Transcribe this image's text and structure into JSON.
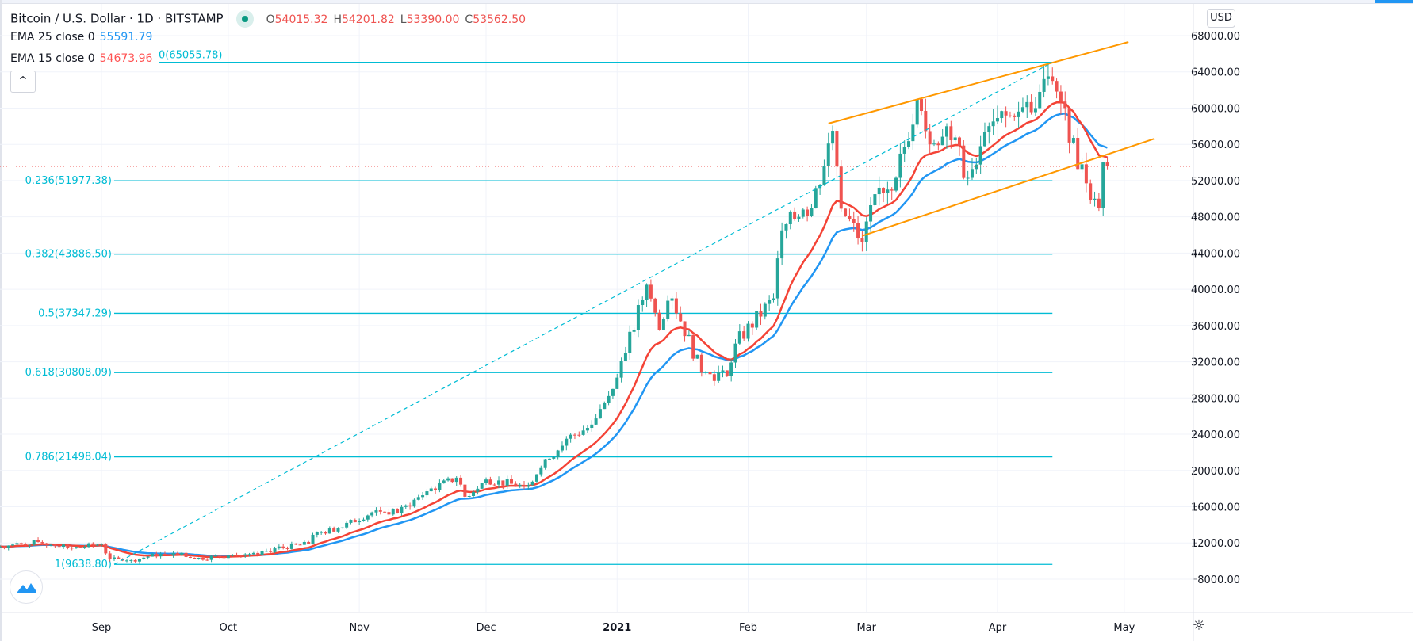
{
  "header": {
    "symbol": "Bitcoin / U.S. Dollar · 1D · BITSTAMP",
    "ohlc": {
      "o_label": "O",
      "o": "54015.32",
      "h_label": "H",
      "h": "54201.82",
      "l_label": "L",
      "l": "53390.00",
      "c_label": "C",
      "c": "53562.50"
    }
  },
  "indicators": [
    {
      "label": "EMA 25 close 0",
      "value": "55591.79",
      "color": "#2196f3",
      "length": 25
    },
    {
      "label": "EMA 15 close 0",
      "value": "54673.96",
      "color": "#f44336",
      "length": 15
    }
  ],
  "collapse_button": "^",
  "currency_button": "USD",
  "colors": {
    "up": "#26a69a",
    "down": "#ef5350",
    "fib": "#00bcd4",
    "channel": "#ff9800",
    "last_price": "#ef5350"
  },
  "chart_data": {
    "type": "candlestick",
    "price_axis": {
      "ticks": [
        "68000.00",
        "64000.00",
        "60000.00",
        "56000.00",
        "52000.00",
        "48000.00",
        "44000.00",
        "40000.00",
        "36000.00",
        "32000.00",
        "28000.00",
        "24000.00",
        "20000.00",
        "16000.00",
        "12000.00",
        "8000.00"
      ],
      "range": [
        4000,
        70000
      ]
    },
    "time_axis": {
      "ticks": [
        "Sep",
        "Oct",
        "Nov",
        "Dec",
        "2021",
        "Feb",
        "Mar",
        "Apr",
        "May"
      ]
    },
    "last_price": 53562.5,
    "approx_close_keyframes": [
      [
        "2020-08-08",
        11600
      ],
      [
        "2020-08-17",
        12100
      ],
      [
        "2020-08-25",
        11400
      ],
      [
        "2020-09-01",
        11900
      ],
      [
        "2020-09-03",
        10200
      ],
      [
        "2020-09-08",
        10100
      ],
      [
        "2020-09-15",
        10800
      ],
      [
        "2020-09-20",
        10900
      ],
      [
        "2020-09-23",
        10250
      ],
      [
        "2020-10-01",
        10600
      ],
      [
        "2020-10-08",
        10700
      ],
      [
        "2020-10-12",
        11400
      ],
      [
        "2020-10-20",
        11900
      ],
      [
        "2020-10-21",
        12900
      ],
      [
        "2020-10-27",
        13600
      ],
      [
        "2020-11-05",
        15600
      ],
      [
        "2020-11-10",
        15300
      ],
      [
        "2020-11-17",
        17700
      ],
      [
        "2020-11-24",
        19200
      ],
      [
        "2020-11-26",
        17100
      ],
      [
        "2020-12-01",
        19000
      ],
      [
        "2020-12-10",
        18200
      ],
      [
        "2020-12-16",
        21300
      ],
      [
        "2020-12-20",
        23500
      ],
      [
        "2020-12-25",
        24700
      ],
      [
        "2020-12-31",
        29000
      ],
      [
        "2021-01-03",
        33000
      ],
      [
        "2021-01-08",
        40500
      ],
      [
        "2021-01-11",
        35500
      ],
      [
        "2021-01-14",
        39000
      ],
      [
        "2021-01-21",
        30800
      ],
      [
        "2021-01-27",
        30400
      ],
      [
        "2021-01-29",
        34000
      ],
      [
        "2021-02-07",
        39000
      ],
      [
        "2021-02-09",
        46500
      ],
      [
        "2021-02-14",
        48800
      ],
      [
        "2021-02-16",
        49000
      ],
      [
        "2021-02-21",
        57500
      ],
      [
        "2021-02-23",
        48900
      ],
      [
        "2021-02-28",
        45200
      ],
      [
        "2021-03-03",
        50500
      ],
      [
        "2021-03-08",
        52300
      ],
      [
        "2021-03-13",
        61000
      ],
      [
        "2021-03-16",
        56000
      ],
      [
        "2021-03-20",
        58000
      ],
      [
        "2021-03-25",
        52300
      ],
      [
        "2021-03-28",
        55800
      ],
      [
        "2021-04-01",
        58900
      ],
      [
        "2021-04-05",
        59000
      ],
      [
        "2021-04-10",
        60000
      ],
      [
        "2021-04-13",
        63500
      ],
      [
        "2021-04-14",
        63000
      ],
      [
        "2021-04-17",
        60000
      ],
      [
        "2021-04-18",
        56200
      ],
      [
        "2021-04-21",
        53800
      ],
      [
        "2021-04-22",
        51700
      ],
      [
        "2021-04-24",
        50000
      ],
      [
        "2021-04-25",
        49000
      ],
      [
        "2021-04-26",
        54000
      ],
      [
        "2021-04-27",
        53562.5
      ]
    ],
    "fibonacci": [
      {
        "label": "0(65055.78)",
        "price": 65055.78
      },
      {
        "label": "0.236(51977.38)",
        "price": 51977.38
      },
      {
        "label": "0.382(43886.50)",
        "price": 43886.5
      },
      {
        "label": "0.5(37347.29)",
        "price": 37347.29
      },
      {
        "label": "0.618(30808.09)",
        "price": 30808.09
      },
      {
        "label": "0.786(21498.04)",
        "price": 21498.04
      },
      {
        "label": "1(9638.80)",
        "price": 9638.8
      }
    ],
    "trend_line": {
      "from": [
        "2020-09-04",
        9638.8
      ],
      "to": [
        "2021-04-14",
        65055.78
      ]
    },
    "channel": {
      "upper": {
        "from": [
          "2021-02-20",
          58300
        ],
        "to": [
          "2021-05-02",
          67300
        ]
      },
      "lower": {
        "from": [
          "2021-02-28",
          45900
        ],
        "to": [
          "2021-05-08",
          56600
        ]
      }
    }
  }
}
